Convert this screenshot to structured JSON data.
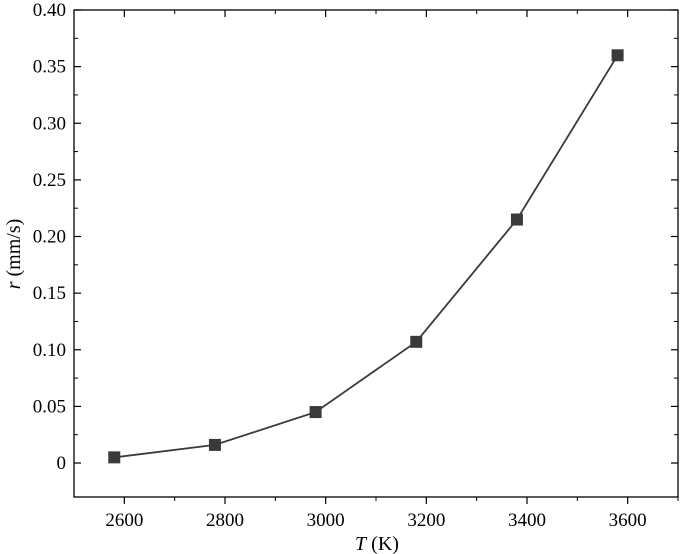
{
  "chart_data": {
    "type": "line",
    "title": "",
    "xlabel": {
      "var": "T",
      "unit": " (K)"
    },
    "ylabel": {
      "var": "r",
      "unit": " (mm/s)"
    },
    "xlim": [
      2500,
      3700
    ],
    "ylim": [
      -0.03,
      0.4
    ],
    "x_ticks": [
      2600,
      2800,
      3000,
      3200,
      3400,
      3600
    ],
    "x_tick_labels": [
      "2600",
      "2800",
      "3000",
      "3200",
      "3400",
      "3600"
    ],
    "y_ticks": [
      0,
      0.05,
      0.1,
      0.15,
      0.2,
      0.25,
      0.3,
      0.35,
      0.4
    ],
    "y_tick_labels": [
      "0",
      "0.05",
      "0.10",
      "0.15",
      "0.20",
      "0.25",
      "0.30",
      "0.35",
      "0.40"
    ],
    "grid": false,
    "legend": "none",
    "series": [
      {
        "marker": "square",
        "color": "#3a3a3a",
        "x": [
          2580,
          2780,
          2980,
          3180,
          3380,
          3580
        ],
        "y": [
          0.005,
          0.016,
          0.045,
          0.107,
          0.215,
          0.36
        ]
      }
    ]
  }
}
